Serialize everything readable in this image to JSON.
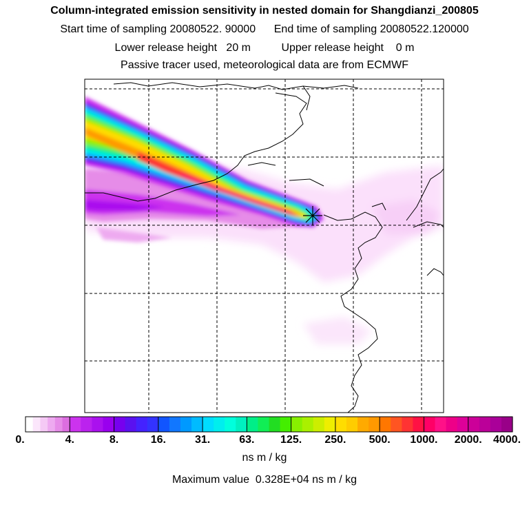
{
  "header": {
    "title": "Column-integrated emission sensitivity in nested domain for Shangdianzi_200805",
    "line1": "Start time of sampling 20080522. 90000      End time of sampling 20080522.120000",
    "line2": "Lower release height   20 m          Upper release height    0 m",
    "line3": "Passive tracer used, meteorological data are from ECMWF"
  },
  "map": {
    "release_site_marker": "star-cross",
    "grid": "dashed"
  },
  "colorbar": {
    "tick_labels": [
      "0.",
      "4.",
      "8.",
      "16.",
      "31.",
      "63.",
      "125.",
      "250.",
      "500.",
      "1000.",
      "2000.",
      "4000."
    ],
    "colors": [
      "#ffffff",
      "#fbe6fb",
      "#f5c9f5",
      "#eeaaf0",
      "#e68ce8",
      "#dc6ee0",
      "#cc33ee",
      "#bb22ee",
      "#aa11ee",
      "#9900ee",
      "#7700ee",
      "#5a11f0",
      "#4422ff",
      "#3333ff",
      "#1155ff",
      "#1177ff",
      "#0099ff",
      "#00bbff",
      "#00ddff",
      "#00eeee",
      "#00ffdd",
      "#00f0c0",
      "#00ee88",
      "#11ee55",
      "#22dd22",
      "#44ee00",
      "#88f000",
      "#aaf000",
      "#ccee00",
      "#eeee00",
      "#ffdd00",
      "#ffcc00",
      "#ffaa00",
      "#ff9900",
      "#ff7700",
      "#ff5522",
      "#ff3333",
      "#ff1144",
      "#ff0066",
      "#ff1188",
      "#ee0088",
      "#dd0099",
      "#cc0099",
      "#bb0099",
      "#aa0099",
      "#990088",
      "#770077",
      "#550055"
    ],
    "units": "ns m / kg",
    "max_value_line": "Maximum value  0.328E+04 ns m / kg"
  }
}
